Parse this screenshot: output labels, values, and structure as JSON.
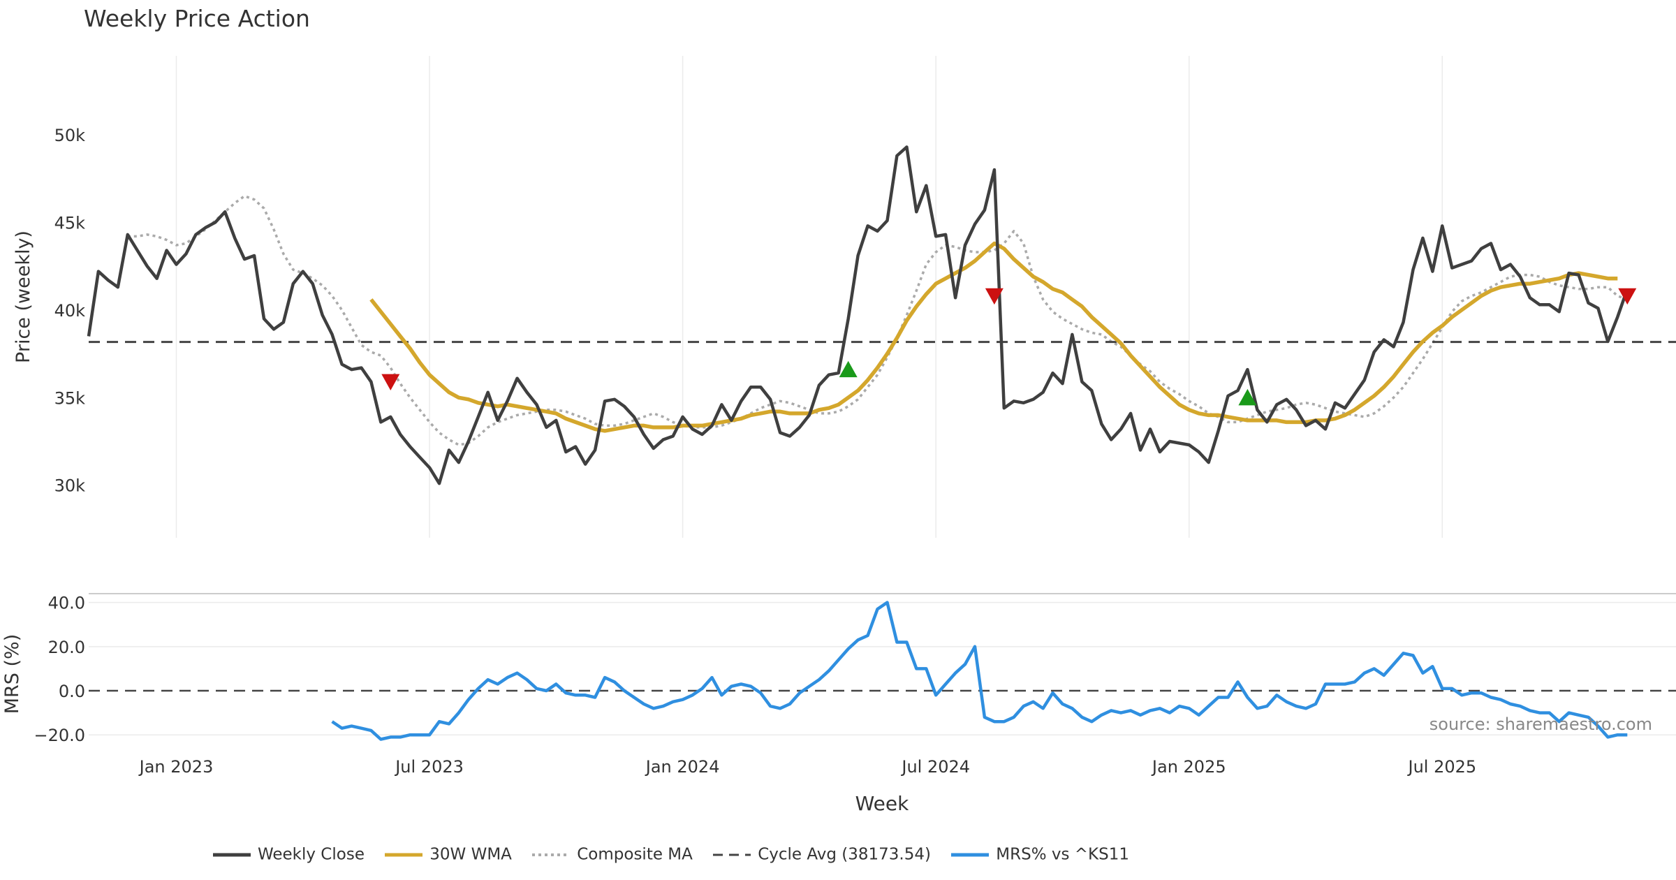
{
  "chart_data": {
    "type": "line",
    "title": "Weekly Price Action",
    "watermark": "source: sharemaestro.com",
    "xlabel": "Week",
    "x_ticks": [
      "Jan 2023",
      "Jul 2023",
      "Jan 2024",
      "Jul 2024",
      "Jan 2025",
      "Jul 2025"
    ],
    "x_tick_weeks": [
      7,
      33,
      59,
      85,
      111,
      137
    ],
    "x_range": [
      -2,
      161
    ],
    "colors": {
      "close": "#3f3f3f",
      "wma": "#d4a72c",
      "composite": "#aaaaaa",
      "cycle": "#444444",
      "mrs": "#2f8fe0",
      "up": "#1a9a1a",
      "down": "#cc1111"
    },
    "price_panel": {
      "ylabel": "Price (weekly)",
      "y_ticks": [
        30000,
        35000,
        40000,
        45000,
        50000
      ],
      "y_tick_labels": [
        "30k",
        "35k",
        "40k",
        "45k",
        "50k"
      ],
      "ylim": [
        27000,
        54500
      ],
      "cycle_avg": 38173.54,
      "series": [
        {
          "name": "Weekly Close",
          "start_week": -2,
          "values": [
            38500,
            42200,
            41700,
            41300,
            44300,
            43400,
            42500,
            41800,
            43400,
            42600,
            43200,
            44300,
            44700,
            45000,
            45600,
            44100,
            42900,
            43100,
            39500,
            38900,
            39300,
            41500,
            42200,
            41500,
            39700,
            38600,
            36900,
            36600,
            36700,
            35900,
            33600,
            33900,
            32900,
            32200,
            31600,
            31000,
            30100,
            32000,
            31300,
            32500,
            33900,
            35300,
            33700,
            34800,
            36100,
            35300,
            34600,
            33300,
            33700,
            31900,
            32200,
            31200,
            32000,
            34800,
            34900,
            34500,
            33900,
            32900,
            32100,
            32600,
            32800,
            33900,
            33200,
            32900,
            33400,
            34600,
            33700,
            34800,
            35600,
            35600,
            34900,
            33000,
            32800,
            33300,
            34000,
            35700,
            36300,
            36400,
            39500,
            43100,
            44800,
            44500,
            45100,
            48800,
            49300,
            45600,
            47100,
            44200,
            44300,
            40700,
            43700,
            44900,
            45700,
            48000,
            34400,
            34800,
            34700,
            34900,
            35300,
            36400,
            35800,
            38600,
            35900,
            35400,
            33500,
            32600,
            33200,
            34100,
            32000,
            33200,
            31900,
            32500,
            32400,
            32300,
            31900,
            31300,
            33100,
            35100,
            35400,
            36600,
            34300,
            33600,
            34600,
            34900,
            34300,
            33400,
            33700,
            33200,
            34700,
            34400,
            35200,
            36000,
            37600,
            38300,
            37900,
            39300,
            42300,
            44100,
            42200,
            44800,
            42400,
            42600,
            42800,
            43500,
            43800,
            42300,
            42600,
            41900,
            40700,
            40300,
            40300,
            39900,
            42100,
            42000,
            40400,
            40100,
            38200,
            39600,
            41200
          ]
        },
        {
          "name": "30W WMA",
          "start_week": 27,
          "values": [
            40600,
            39900,
            39200,
            38500,
            37800,
            37000,
            36300,
            35800,
            35300,
            35000,
            34900,
            34700,
            34600,
            34500,
            34600,
            34500,
            34400,
            34300,
            34200,
            34100,
            33800,
            33600,
            33400,
            33200,
            33100,
            33200,
            33300,
            33400,
            33400,
            33300,
            33300,
            33300,
            33400,
            33400,
            33400,
            33500,
            33600,
            33700,
            33800,
            34000,
            34100,
            34200,
            34200,
            34100,
            34100,
            34100,
            34300,
            34400,
            34600,
            35000,
            35400,
            36000,
            36700,
            37500,
            38400,
            39400,
            40200,
            40900,
            41500,
            41800,
            42100,
            42400,
            42800,
            43300,
            43800,
            43500,
            42900,
            42400,
            41900,
            41600,
            41200,
            41000,
            40600,
            40200,
            39600,
            39100,
            38600,
            38100,
            37400,
            36800,
            36200,
            35600,
            35100,
            34600,
            34300,
            34100,
            34000,
            34000,
            33900,
            33800,
            33700,
            33700,
            33700,
            33700,
            33600,
            33600,
            33600,
            33700,
            33700,
            33800,
            34000,
            34300,
            34700,
            35100,
            35600,
            36200,
            36900,
            37600,
            38200,
            38700,
            39100,
            39600,
            40000,
            40400,
            40800,
            41100,
            41300,
            41400,
            41500,
            41500,
            41600,
            41700,
            41800,
            42000,
            42100,
            42000,
            41900,
            41800,
            41800
          ]
        },
        {
          "name": "Composite MA",
          "start_week": 2,
          "values": [
            44200,
            44200,
            44300,
            44200,
            44000,
            43700,
            43800,
            44200,
            44600,
            45100,
            45600,
            46100,
            46500,
            46300,
            45800,
            44600,
            43200,
            42300,
            42100,
            41800,
            41400,
            40800,
            40000,
            39000,
            38000,
            37600,
            37400,
            36700,
            35800,
            35000,
            34300,
            33600,
            33000,
            32600,
            32300,
            32400,
            32800,
            33300,
            33600,
            33800,
            34000,
            34100,
            34200,
            34300,
            34300,
            34200,
            34000,
            33800,
            33500,
            33400,
            33400,
            33500,
            33700,
            33900,
            34100,
            33900,
            33600,
            33400,
            33300,
            33300,
            33300,
            33400,
            33600,
            33800,
            34100,
            34400,
            34600,
            34800,
            34700,
            34500,
            34300,
            34100,
            34100,
            34200,
            34500,
            34900,
            35600,
            36300,
            37300,
            38400,
            39700,
            41100,
            42600,
            43300,
            43700,
            43600,
            43400,
            43300,
            43300,
            43400,
            43800,
            44500,
            43800,
            41900,
            40600,
            39900,
            39500,
            39200,
            38900,
            38700,
            38600,
            38200,
            37900,
            37400,
            36900,
            36500,
            35900,
            35500,
            35200,
            34800,
            34500,
            34100,
            33900,
            33600,
            33600,
            33800,
            34000,
            34200,
            34300,
            34400,
            34600,
            34700,
            34600,
            34400,
            34200,
            34100,
            34000,
            33900,
            34100,
            34500,
            35000,
            35600,
            36400,
            37200,
            38100,
            39000,
            39900,
            40500,
            40800,
            41000,
            41300,
            41600,
            41900,
            42000,
            42000,
            41900,
            41600,
            41400,
            41300,
            41200,
            41200,
            41300,
            41300,
            40800,
            40600
          ]
        },
        {
          "name": "Cycle Avg (38173.54)"
        }
      ],
      "markers": [
        {
          "type": "down",
          "week": 29,
          "value": 35900
        },
        {
          "type": "up",
          "week": 76,
          "value": 36600
        },
        {
          "type": "down",
          "week": 91,
          "value": 40800
        },
        {
          "type": "up",
          "week": 117,
          "value": 35000
        },
        {
          "type": "down",
          "week": 156,
          "value": 40800
        }
      ]
    },
    "mrs_panel": {
      "ylabel": "MRS (%)",
      "y_ticks": [
        -20,
        0,
        20,
        40
      ],
      "y_tick_labels": [
        "−20.0",
        "0.0",
        "20.0",
        "40.0"
      ],
      "ylim": [
        -25,
        44
      ],
      "series": [
        {
          "name": "MRS% vs ^KS11",
          "start_week": 23,
          "values": [
            -14,
            -17,
            -16,
            -17,
            -18,
            -22,
            -21,
            -21,
            -20,
            -20,
            -20,
            -14,
            -15,
            -10,
            -4,
            1,
            5,
            3,
            6,
            8,
            5,
            1,
            0,
            3,
            -1,
            -2,
            -2,
            -3,
            6,
            4,
            0,
            -3,
            -6,
            -8,
            -7,
            -5,
            -4,
            -2,
            1,
            6,
            -2,
            2,
            3,
            2,
            -1,
            -7,
            -8,
            -6,
            -1,
            2,
            5,
            9,
            14,
            19,
            23,
            25,
            37,
            40,
            22,
            22,
            10,
            10,
            -2,
            3,
            8,
            12,
            20,
            -12,
            -14,
            -14,
            -12,
            -7,
            -5,
            -8,
            -1,
            -6,
            -8,
            -12,
            -14,
            -11,
            -9,
            -10,
            -9,
            -11,
            -9,
            -8,
            -10,
            -7,
            -8,
            -11,
            -7,
            -3,
            -3,
            4,
            -3,
            -8,
            -7,
            -2,
            -5,
            -7,
            -8,
            -6,
            3,
            3,
            3,
            4,
            8,
            10,
            7,
            12,
            17,
            16,
            8,
            11,
            1,
            1,
            -2,
            -1,
            -1,
            -3,
            -4,
            -6,
            -7,
            -9,
            -10,
            -10,
            -14,
            -10,
            -11,
            -12,
            -16,
            -21,
            -20,
            -20
          ]
        }
      ]
    }
  }
}
